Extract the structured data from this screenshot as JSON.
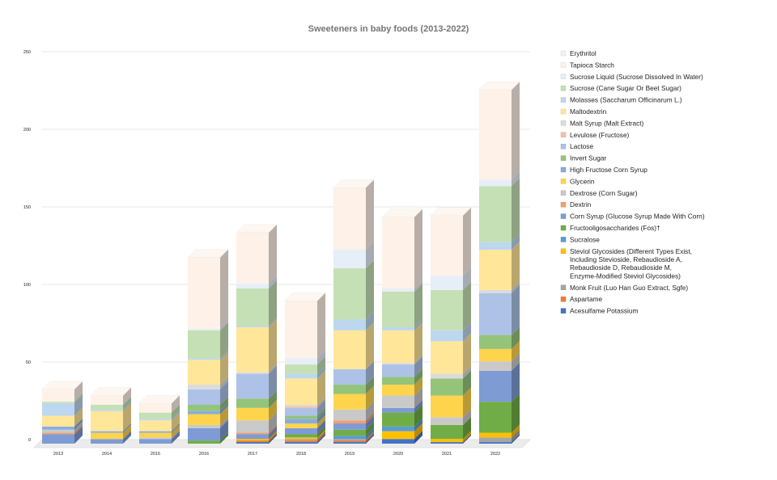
{
  "chart_data": {
    "type": "bar",
    "stacked": true,
    "three_d": true,
    "title": "Sweeteners in baby foods (2013-2022)",
    "xlabel": "",
    "ylabel": "",
    "ylim": [
      0,
      250
    ],
    "yticks": [
      "0",
      "50",
      "100",
      "150",
      "200",
      "250"
    ],
    "grid": true,
    "legend_position": "right",
    "categories": [
      "2013",
      "2014",
      "2015",
      "2016",
      "2017",
      "2018",
      "2019",
      "2020",
      "2021",
      "2022"
    ],
    "series": [
      {
        "name": "Acesulfame Potassium",
        "color": "#4472c4",
        "values": [
          0,
          0,
          0,
          0,
          1,
          1,
          1,
          3,
          1,
          1
        ]
      },
      {
        "name": "Aspartame",
        "color": "#ed7d31",
        "values": [
          0,
          0,
          0,
          0,
          1,
          1,
          1,
          0,
          0,
          0
        ]
      },
      {
        "name": "Monk Fruit (Luo Han Guo Extract, Sgfe)",
        "color": "#a5a5a5",
        "values": [
          0,
          0,
          0,
          0,
          0,
          1,
          1,
          0,
          0,
          3
        ]
      },
      {
        "name": "Steviol Glycosides (Different Types Exist, Including Stevioside, Rebaudioside A, Rebaudioside D, Rebaudioside M, Enzyme-Modified Steviol Glycosides)",
        "color": "#ffc000",
        "values": [
          0,
          0,
          0,
          0,
          1,
          1,
          0,
          5,
          2,
          3
        ]
      },
      {
        "name": "Sucralose",
        "color": "#5b9bd5",
        "values": [
          0,
          0,
          0,
          0,
          0,
          0,
          2,
          3,
          0,
          0
        ]
      },
      {
        "name": "Fructooligosaccharides (Fos)†",
        "color": "#70ad47",
        "values": [
          0,
          0,
          0,
          2,
          0,
          2,
          4,
          9,
          9,
          20
        ]
      },
      {
        "name": "Corn Syrup (Glucose Syrup Made With Corn)",
        "color": "#7e9bd4",
        "values": [
          6,
          3,
          3,
          8,
          3,
          4,
          4,
          3,
          0,
          20
        ]
      },
      {
        "name": "Dextrin",
        "color": "#f0a072",
        "values": [
          1,
          0,
          0,
          0,
          1,
          0,
          2,
          0,
          0,
          0
        ]
      },
      {
        "name": "Dextrose (Corn Sugar)",
        "color": "#c9c9c9",
        "values": [
          2,
          0,
          1,
          2,
          8,
          0,
          7,
          8,
          5,
          6
        ]
      },
      {
        "name": "Glycerin",
        "color": "#ffd44d",
        "values": [
          0,
          4,
          3,
          7,
          8,
          3,
          10,
          7,
          14,
          8
        ]
      },
      {
        "name": "High Fructose Corn Syrup",
        "color": "#88acdf",
        "values": [
          2,
          1,
          1,
          2,
          0,
          3,
          0,
          0,
          0,
          0
        ]
      },
      {
        "name": "Invert Sugar",
        "color": "#94c47a",
        "values": [
          0,
          0,
          0,
          4,
          6,
          2,
          6,
          5,
          11,
          9
        ]
      },
      {
        "name": "Lactose",
        "color": "#adc2e6",
        "values": [
          0,
          0,
          0,
          10,
          16,
          5,
          10,
          8,
          0,
          27
        ]
      },
      {
        "name": "Levulose (Fructose)",
        "color": "#f4c2a3",
        "values": [
          0,
          0,
          0,
          0,
          0,
          1,
          0,
          0,
          0,
          0
        ]
      },
      {
        "name": "Malt Syrup (Malt Extract)",
        "color": "#dbdbdb",
        "values": [
          0,
          0,
          0,
          3,
          1,
          1,
          0,
          1,
          3,
          2
        ]
      },
      {
        "name": "Maltodextrin",
        "color": "#ffe699",
        "values": [
          7,
          13,
          7,
          16,
          29,
          17,
          25,
          21,
          21,
          26
        ]
      },
      {
        "name": "Molasses (Saccharum Officinarum L.)",
        "color": "#bdd7ee",
        "values": [
          8,
          1,
          1,
          1,
          1,
          3,
          7,
          2,
          7,
          5
        ]
      },
      {
        "name": "Sucrose (Cane Sugar Or Beet Sugar)",
        "color": "#c5e0b4",
        "values": [
          1,
          3,
          4,
          18,
          24,
          6,
          33,
          23,
          26,
          36
        ]
      },
      {
        "name": "Sucrose Liquid (Sucrose Dissolved In Water)",
        "color": "#e6eef8",
        "values": [
          0,
          0,
          0,
          1,
          3,
          4,
          12,
          2,
          9,
          4
        ]
      },
      {
        "name": "Tapioca Starch",
        "color": "#fdf1e8",
        "values": [
          8,
          6,
          6,
          46,
          33,
          37,
          40,
          46,
          39,
          58
        ]
      },
      {
        "name": "Erythritol",
        "color": "#f2f2f2",
        "values": [
          0,
          0,
          0,
          0,
          0,
          0,
          0,
          0,
          0,
          0
        ]
      }
    ]
  }
}
